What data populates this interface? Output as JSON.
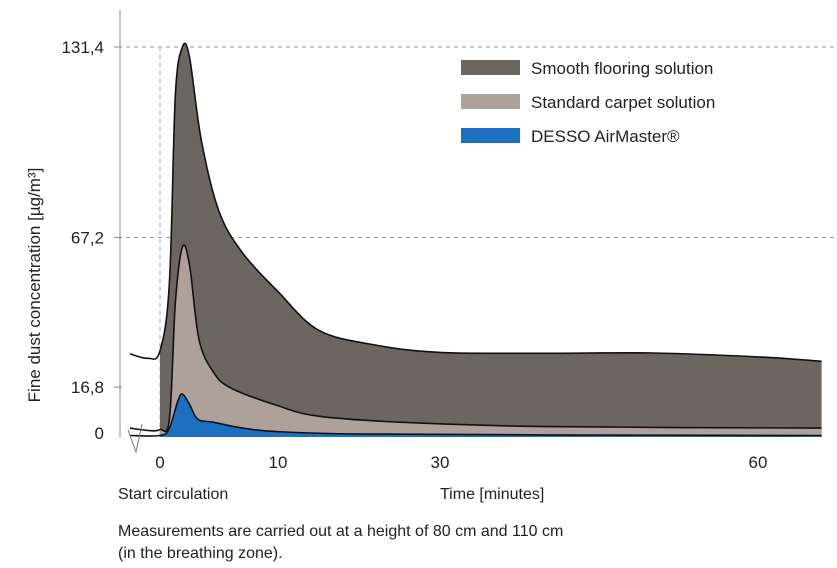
{
  "chart_data": {
    "type": "area",
    "ylabel": "Fine dust concentration [µg/m³]",
    "xlabel": "Time [minutes]",
    "start_label": "Start circulation",
    "y_ticks": [
      {
        "value": 0,
        "label": "0"
      },
      {
        "value": 16.8,
        "label": "16,8"
      },
      {
        "value": 67.2,
        "label": "67,2"
      },
      {
        "value": 131.4,
        "label": "131,4"
      }
    ],
    "x_ticks": [
      {
        "value": 0,
        "label": "0"
      },
      {
        "value": 10,
        "label": "10"
      },
      {
        "value": 30,
        "label": "30"
      },
      {
        "value": 60,
        "label": "60"
      }
    ],
    "gridlines_dashed": [
      67.2,
      131.4
    ],
    "legend_position": "top-right",
    "series": [
      {
        "name": "Smooth flooring solution",
        "color": "#6b6760",
        "points": [
          [
            -2.5,
            28
          ],
          [
            -1,
            26.5
          ],
          [
            0,
            29
          ],
          [
            0.8,
            52
          ],
          [
            1.3,
            115
          ],
          [
            1.9,
            131.4
          ],
          [
            2.5,
            128
          ],
          [
            3.5,
            100
          ],
          [
            5,
            76
          ],
          [
            7,
            62
          ],
          [
            10,
            49
          ],
          [
            15,
            36
          ],
          [
            22,
            31
          ],
          [
            30,
            28.5
          ],
          [
            40,
            28.2
          ],
          [
            50,
            28.3
          ],
          [
            60,
            27
          ],
          [
            66,
            25.5
          ]
        ]
      },
      {
        "name": "Standard carpet solution",
        "color": "#ada19a",
        "points": [
          [
            -2.5,
            3
          ],
          [
            -1,
            2.2
          ],
          [
            0,
            2.5
          ],
          [
            0.8,
            6
          ],
          [
            1.3,
            45
          ],
          [
            1.9,
            64
          ],
          [
            2.5,
            58
          ],
          [
            3.3,
            33
          ],
          [
            4.5,
            22
          ],
          [
            6,
            16.5
          ],
          [
            10,
            10.5
          ],
          [
            15,
            7
          ],
          [
            25,
            5
          ],
          [
            40,
            3.5
          ],
          [
            66,
            3
          ]
        ]
      },
      {
        "name": "DESSO AirMaster®",
        "color": "#1d6fc0",
        "points": [
          [
            -2.5,
            0.5
          ],
          [
            0,
            0.5
          ],
          [
            0.8,
            3
          ],
          [
            1.5,
            12
          ],
          [
            1.9,
            14.5
          ],
          [
            2.5,
            11
          ],
          [
            3.2,
            6
          ],
          [
            4.5,
            5
          ],
          [
            7,
            3
          ],
          [
            10,
            1.8
          ],
          [
            20,
            1
          ],
          [
            40,
            0.7
          ],
          [
            66,
            0.5
          ]
        ]
      }
    ]
  },
  "caption": {
    "line1": "Measurements are carried out at a height of 80 cm and 110 cm",
    "line2": "(in the breathing zone)."
  }
}
